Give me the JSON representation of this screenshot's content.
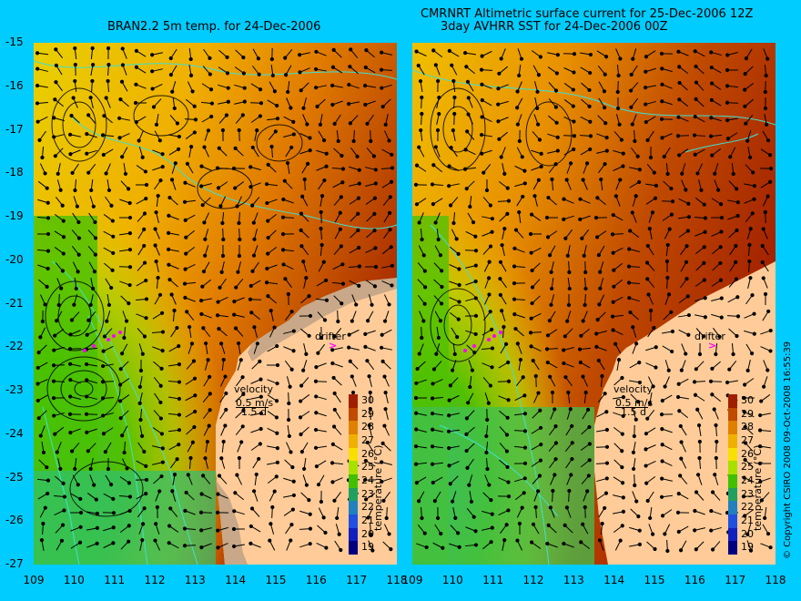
{
  "titles": {
    "left": "BRAN2.2 5m temp. for 24-Dec-2006",
    "right_line1": "CMRNRT Altimetric surface current for 25-Dec-2006 12Z",
    "right_line2": "3day AVHRR SST for 24-Dec-2006 00Z"
  },
  "axes": {
    "lat_ticks": [
      "-15",
      "-16",
      "-17",
      "-18",
      "-19",
      "-20",
      "-21",
      "-22",
      "-23",
      "-24",
      "-25",
      "-26",
      "-27"
    ],
    "lon_ticks": [
      "109",
      "110",
      "111",
      "112",
      "113",
      "114",
      "115",
      "116",
      "117",
      "118"
    ]
  },
  "annotations": {
    "drifter": "drifter",
    "drifter_symbol": ">",
    "velocity": "velocity",
    "velocity_scale": "0.5 m/s",
    "velocity_time": "1.5 d"
  },
  "colorbar": {
    "label": "temperature (°C)",
    "ticks": [
      "30",
      "29",
      "28",
      "27",
      "26",
      "25",
      "24",
      "23",
      "22",
      "21",
      "20",
      "19"
    ],
    "colors": [
      "#a01e00",
      "#c04a00",
      "#e08000",
      "#f0b000",
      "#f8e000",
      "#a8e000",
      "#40c000",
      "#20a060",
      "#2080c0",
      "#2050e0",
      "#1020c0",
      "#000080"
    ]
  },
  "copyright": "© Copyright CSIRO 2008   09-Oct-2008 16:55:39",
  "colors": {
    "background": "#00ccff",
    "land": "#ffcc99",
    "land_missing": "#c8a888",
    "coast_contour": "#40e0d0",
    "drifter": "#ff00ff"
  }
}
